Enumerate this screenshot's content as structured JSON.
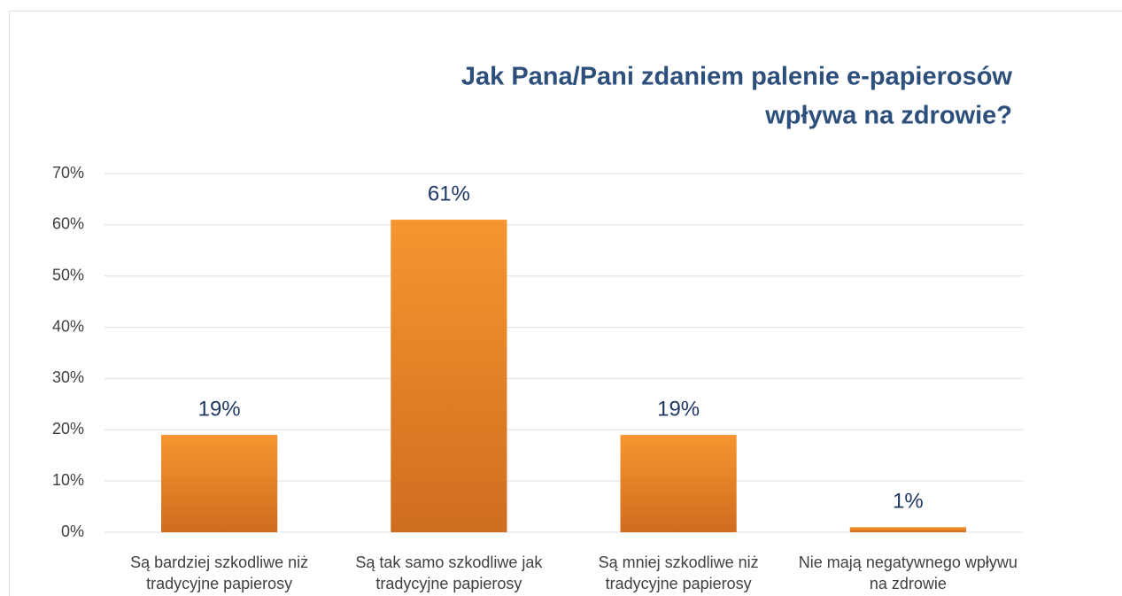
{
  "chart_data": {
    "type": "bar",
    "title": [
      "Jak Pana/Pani zdaniem palenie e-papierosów",
      "wpływa na zdrowie?"
    ],
    "categories": [
      "Są bardziej szkodliwe niż tradycyjne papierosy",
      "Są tak samo szkodliwe jak tradycyjne papierosy",
      "Są mniej szkodliwe niż tradycyjne papierosy",
      "Nie mają negatywnego wpływu na zdrowie"
    ],
    "values": [
      19,
      61,
      19,
      1
    ],
    "value_labels": [
      "19%",
      "61%",
      "19%",
      "1%"
    ],
    "color": "#f79530",
    "ylim": [
      0,
      70
    ],
    "yticks": [
      {
        "value": 0,
        "label": "0%"
      },
      {
        "value": 10,
        "label": "10%"
      },
      {
        "value": 20,
        "label": "20%"
      },
      {
        "value": 30,
        "label": "30%"
      },
      {
        "value": 40,
        "label": "40%"
      },
      {
        "value": 50,
        "label": "50%"
      },
      {
        "value": 60,
        "label": "60%"
      },
      {
        "value": 70,
        "label": "70%"
      }
    ],
    "grid": true
  }
}
